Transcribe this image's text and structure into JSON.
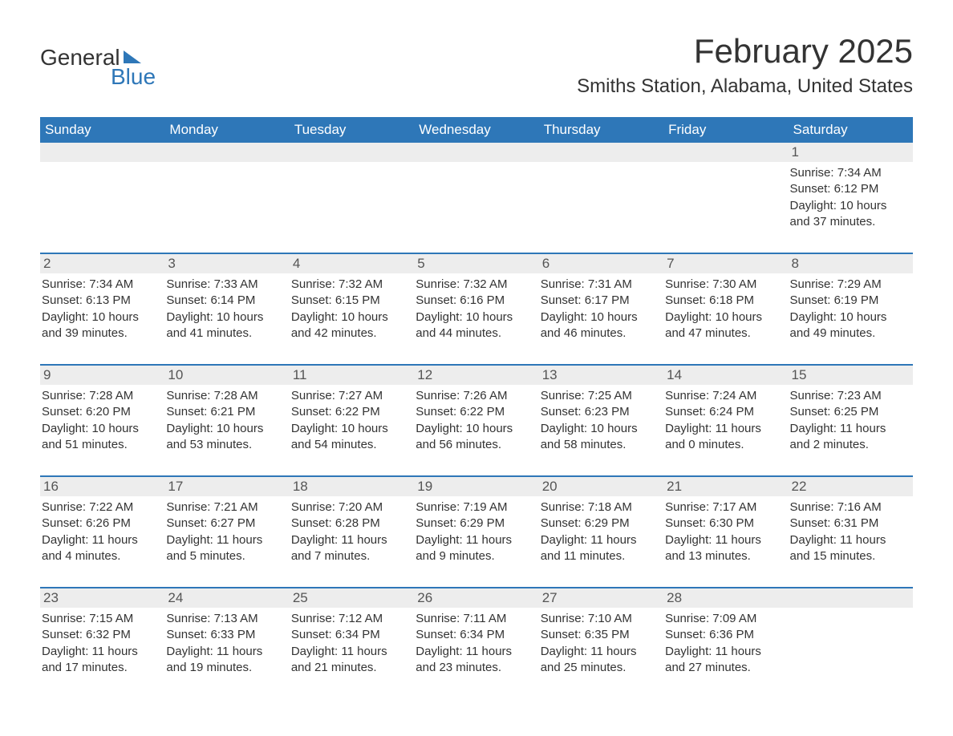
{
  "logo": {
    "text1": "General",
    "text2": "Blue"
  },
  "title": "February 2025",
  "location": "Smiths Station, Alabama, United States",
  "colors": {
    "header_bg": "#2e77b8",
    "header_fg": "#ffffff",
    "daynum_bg": "#ededed",
    "text": "#333333",
    "accent": "#2e77b8"
  },
  "dows": [
    "Sunday",
    "Monday",
    "Tuesday",
    "Wednesday",
    "Thursday",
    "Friday",
    "Saturday"
  ],
  "weeks": [
    [
      null,
      null,
      null,
      null,
      null,
      null,
      {
        "n": "1",
        "sunrise": "Sunrise: 7:34 AM",
        "sunset": "Sunset: 6:12 PM",
        "dl1": "Daylight: 10 hours",
        "dl2": "and 37 minutes."
      }
    ],
    [
      {
        "n": "2",
        "sunrise": "Sunrise: 7:34 AM",
        "sunset": "Sunset: 6:13 PM",
        "dl1": "Daylight: 10 hours",
        "dl2": "and 39 minutes."
      },
      {
        "n": "3",
        "sunrise": "Sunrise: 7:33 AM",
        "sunset": "Sunset: 6:14 PM",
        "dl1": "Daylight: 10 hours",
        "dl2": "and 41 minutes."
      },
      {
        "n": "4",
        "sunrise": "Sunrise: 7:32 AM",
        "sunset": "Sunset: 6:15 PM",
        "dl1": "Daylight: 10 hours",
        "dl2": "and 42 minutes."
      },
      {
        "n": "5",
        "sunrise": "Sunrise: 7:32 AM",
        "sunset": "Sunset: 6:16 PM",
        "dl1": "Daylight: 10 hours",
        "dl2": "and 44 minutes."
      },
      {
        "n": "6",
        "sunrise": "Sunrise: 7:31 AM",
        "sunset": "Sunset: 6:17 PM",
        "dl1": "Daylight: 10 hours",
        "dl2": "and 46 minutes."
      },
      {
        "n": "7",
        "sunrise": "Sunrise: 7:30 AM",
        "sunset": "Sunset: 6:18 PM",
        "dl1": "Daylight: 10 hours",
        "dl2": "and 47 minutes."
      },
      {
        "n": "8",
        "sunrise": "Sunrise: 7:29 AM",
        "sunset": "Sunset: 6:19 PM",
        "dl1": "Daylight: 10 hours",
        "dl2": "and 49 minutes."
      }
    ],
    [
      {
        "n": "9",
        "sunrise": "Sunrise: 7:28 AM",
        "sunset": "Sunset: 6:20 PM",
        "dl1": "Daylight: 10 hours",
        "dl2": "and 51 minutes."
      },
      {
        "n": "10",
        "sunrise": "Sunrise: 7:28 AM",
        "sunset": "Sunset: 6:21 PM",
        "dl1": "Daylight: 10 hours",
        "dl2": "and 53 minutes."
      },
      {
        "n": "11",
        "sunrise": "Sunrise: 7:27 AM",
        "sunset": "Sunset: 6:22 PM",
        "dl1": "Daylight: 10 hours",
        "dl2": "and 54 minutes."
      },
      {
        "n": "12",
        "sunrise": "Sunrise: 7:26 AM",
        "sunset": "Sunset: 6:22 PM",
        "dl1": "Daylight: 10 hours",
        "dl2": "and 56 minutes."
      },
      {
        "n": "13",
        "sunrise": "Sunrise: 7:25 AM",
        "sunset": "Sunset: 6:23 PM",
        "dl1": "Daylight: 10 hours",
        "dl2": "and 58 minutes."
      },
      {
        "n": "14",
        "sunrise": "Sunrise: 7:24 AM",
        "sunset": "Sunset: 6:24 PM",
        "dl1": "Daylight: 11 hours",
        "dl2": "and 0 minutes."
      },
      {
        "n": "15",
        "sunrise": "Sunrise: 7:23 AM",
        "sunset": "Sunset: 6:25 PM",
        "dl1": "Daylight: 11 hours",
        "dl2": "and 2 minutes."
      }
    ],
    [
      {
        "n": "16",
        "sunrise": "Sunrise: 7:22 AM",
        "sunset": "Sunset: 6:26 PM",
        "dl1": "Daylight: 11 hours",
        "dl2": "and 4 minutes."
      },
      {
        "n": "17",
        "sunrise": "Sunrise: 7:21 AM",
        "sunset": "Sunset: 6:27 PM",
        "dl1": "Daylight: 11 hours",
        "dl2": "and 5 minutes."
      },
      {
        "n": "18",
        "sunrise": "Sunrise: 7:20 AM",
        "sunset": "Sunset: 6:28 PM",
        "dl1": "Daylight: 11 hours",
        "dl2": "and 7 minutes."
      },
      {
        "n": "19",
        "sunrise": "Sunrise: 7:19 AM",
        "sunset": "Sunset: 6:29 PM",
        "dl1": "Daylight: 11 hours",
        "dl2": "and 9 minutes."
      },
      {
        "n": "20",
        "sunrise": "Sunrise: 7:18 AM",
        "sunset": "Sunset: 6:29 PM",
        "dl1": "Daylight: 11 hours",
        "dl2": "and 11 minutes."
      },
      {
        "n": "21",
        "sunrise": "Sunrise: 7:17 AM",
        "sunset": "Sunset: 6:30 PM",
        "dl1": "Daylight: 11 hours",
        "dl2": "and 13 minutes."
      },
      {
        "n": "22",
        "sunrise": "Sunrise: 7:16 AM",
        "sunset": "Sunset: 6:31 PM",
        "dl1": "Daylight: 11 hours",
        "dl2": "and 15 minutes."
      }
    ],
    [
      {
        "n": "23",
        "sunrise": "Sunrise: 7:15 AM",
        "sunset": "Sunset: 6:32 PM",
        "dl1": "Daylight: 11 hours",
        "dl2": "and 17 minutes."
      },
      {
        "n": "24",
        "sunrise": "Sunrise: 7:13 AM",
        "sunset": "Sunset: 6:33 PM",
        "dl1": "Daylight: 11 hours",
        "dl2": "and 19 minutes."
      },
      {
        "n": "25",
        "sunrise": "Sunrise: 7:12 AM",
        "sunset": "Sunset: 6:34 PM",
        "dl1": "Daylight: 11 hours",
        "dl2": "and 21 minutes."
      },
      {
        "n": "26",
        "sunrise": "Sunrise: 7:11 AM",
        "sunset": "Sunset: 6:34 PM",
        "dl1": "Daylight: 11 hours",
        "dl2": "and 23 minutes."
      },
      {
        "n": "27",
        "sunrise": "Sunrise: 7:10 AM",
        "sunset": "Sunset: 6:35 PM",
        "dl1": "Daylight: 11 hours",
        "dl2": "and 25 minutes."
      },
      {
        "n": "28",
        "sunrise": "Sunrise: 7:09 AM",
        "sunset": "Sunset: 6:36 PM",
        "dl1": "Daylight: 11 hours",
        "dl2": "and 27 minutes."
      },
      null
    ]
  ]
}
